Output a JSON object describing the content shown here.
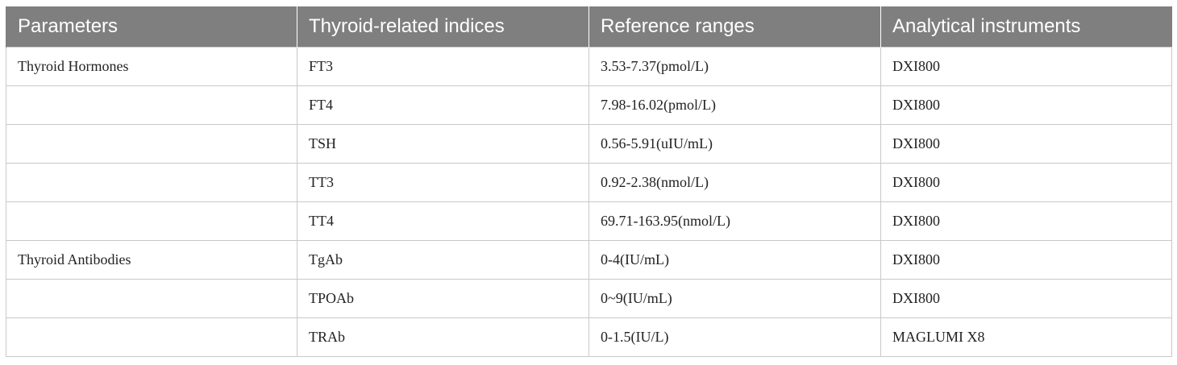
{
  "table": {
    "headers": [
      "Parameters",
      "Thyroid-related indices",
      "Reference ranges",
      "Analytical instruments"
    ],
    "rows": [
      [
        "Thyroid Hormones",
        "FT3",
        "3.53-7.37(pmol/L)",
        "DXI800"
      ],
      [
        "",
        "FT4",
        "7.98-16.02(pmol/L)",
        "DXI800"
      ],
      [
        "",
        "TSH",
        "0.56-5.91(uIU/mL)",
        "DXI800"
      ],
      [
        "",
        "TT3",
        "0.92-2.38(nmol/L)",
        "DXI800"
      ],
      [
        "",
        "TT4",
        "69.71-163.95(nmol/L)",
        "DXI800"
      ],
      [
        "Thyroid Antibodies",
        "TgAb",
        "0-4(IU/mL)",
        "DXI800"
      ],
      [
        "",
        "TPOAb",
        "0~9(IU/mL)",
        "DXI800"
      ],
      [
        "",
        "TRAb",
        "0-1.5(IU/L)",
        "MAGLUMI X8"
      ]
    ]
  }
}
